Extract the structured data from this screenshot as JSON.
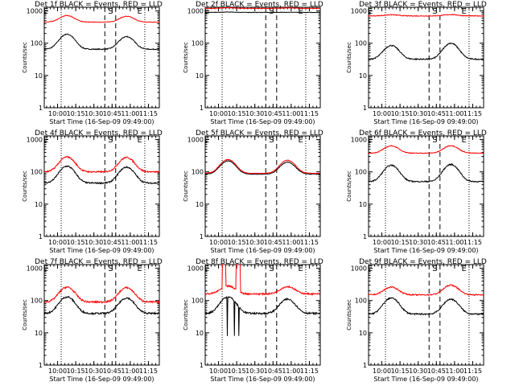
{
  "figure": {
    "colors": {
      "events": "#000000",
      "lld": "#ff0000",
      "background": "#ffffff"
    }
  },
  "chart_data": [
    {
      "type": "line",
      "title": "Det 1f BLACK = Events, RED = LLD",
      "xlabel": "Start Time (16-Sep-09 09:49:00)",
      "ylabel": "Counts/sec",
      "xticks": [
        "10:00",
        "10:15",
        "10:30",
        "10:45",
        "11:00",
        "11:15"
      ],
      "yticks": [
        "1",
        "10",
        "100",
        "1000"
      ],
      "ylim": [
        1,
        1300
      ],
      "yscale": "log",
      "markers": [
        "E",
        "S",
        "E"
      ],
      "series": [
        {
          "name": "Events",
          "color": "#000000",
          "base": 65,
          "peak1": 190,
          "peak2": 160,
          "noise": 0.03
        },
        {
          "name": "LLD",
          "color": "#ff0000",
          "base": 450,
          "peak1": 720,
          "peak2": 680,
          "noise": 0.02
        }
      ]
    },
    {
      "type": "line",
      "title": "Det 2f BLACK = Events, RED = LLD",
      "xlabel": "Start Time (16-Sep-09 09:49:00)",
      "ylabel": "Counts/sec",
      "xticks": [
        "10:00",
        "10:15",
        "10:30",
        "10:45",
        "11:00",
        "11:15"
      ],
      "yticks": [
        "1",
        "10",
        "100",
        "1000"
      ],
      "ylim": [
        1,
        1300
      ],
      "yscale": "log",
      "markers": [
        "E",
        "S",
        "E"
      ],
      "series": [
        {
          "name": "Events",
          "color": "#000000",
          "base": 900,
          "peak1": 920,
          "peak2": 910,
          "noise": 0.015
        },
        {
          "name": "LLD",
          "color": "#ff0000",
          "base": 1200,
          "peak1": 1250,
          "peak2": 1240,
          "noise": 0.015
        }
      ]
    },
    {
      "type": "line",
      "title": "Det 3f BLACK = Events, RED = LLD",
      "xlabel": "Start Time (16-Sep-09 09:49:00)",
      "ylabel": "Counts/sec",
      "xticks": [
        "10:00",
        "10:15",
        "10:30",
        "10:45",
        "11:00",
        "11:15"
      ],
      "yticks": [
        "1",
        "10",
        "100",
        "1000"
      ],
      "ylim": [
        1,
        1300
      ],
      "yscale": "log",
      "markers": [
        "E",
        "S",
        "E"
      ],
      "series": [
        {
          "name": "Events",
          "color": "#000000",
          "base": 32,
          "peak1": 85,
          "peak2": 100,
          "noise": 0.04
        },
        {
          "name": "LLD",
          "color": "#ff0000",
          "base": 700,
          "peak1": 760,
          "peak2": 770,
          "noise": 0.025
        }
      ]
    },
    {
      "type": "line",
      "title": "Det 4f BLACK = Events, RED = LLD",
      "xlabel": "Start Time (16-Sep-09 09:49:00)",
      "ylabel": "Counts/sec",
      "xticks": [
        "10:00",
        "10:15",
        "10:30",
        "10:45",
        "11:00",
        "11:15"
      ],
      "yticks": [
        "1",
        "10",
        "100",
        "1000"
      ],
      "ylim": [
        1,
        1300
      ],
      "yscale": "log",
      "markers": [
        "E",
        "S",
        "E"
      ],
      "series": [
        {
          "name": "Events",
          "color": "#000000",
          "base": 45,
          "peak1": 150,
          "peak2": 140,
          "noise": 0.05
        },
        {
          "name": "LLD",
          "color": "#ff0000",
          "base": 100,
          "peak1": 290,
          "peak2": 280,
          "noise": 0.05
        }
      ]
    },
    {
      "type": "line",
      "title": "Det 5f BLACK = Events, RED = LLD",
      "xlabel": "Start Time (16-Sep-09 09:49:00)",
      "ylabel": "Counts/sec",
      "xticks": [
        "10:00",
        "10:15",
        "10:30",
        "10:45",
        "11:00",
        "11:15"
      ],
      "yticks": [
        "1",
        "10",
        "100",
        "1000"
      ],
      "ylim": [
        1,
        1300
      ],
      "yscale": "log",
      "markers": [
        "E",
        "S",
        "E"
      ],
      "series": [
        {
          "name": "Events",
          "color": "#000000",
          "base": 85,
          "peak1": 220,
          "peak2": 200,
          "noise": 0.02
        },
        {
          "name": "LLD",
          "color": "#ff0000",
          "base": 90,
          "peak1": 240,
          "peak2": 230,
          "noise": 0.02
        }
      ]
    },
    {
      "type": "line",
      "title": "Det 6f BLACK = Events, RED = LLD",
      "xlabel": "Start Time (16-Sep-09 09:49:00)",
      "ylabel": "Counts/sec",
      "xticks": [
        "10:00",
        "10:15",
        "10:30",
        "10:45",
        "11:00",
        "11:15"
      ],
      "yticks": [
        "1",
        "10",
        "100",
        "1000"
      ],
      "ylim": [
        1,
        1300
      ],
      "yscale": "log",
      "markers": [
        "E",
        "S",
        "E"
      ],
      "series": [
        {
          "name": "Events",
          "color": "#000000",
          "base": 50,
          "peak1": 160,
          "peak2": 170,
          "noise": 0.04
        },
        {
          "name": "LLD",
          "color": "#ff0000",
          "base": 380,
          "peak1": 640,
          "peak2": 650,
          "noise": 0.025
        }
      ]
    },
    {
      "type": "line",
      "title": "Det 7f BLACK = Events, RED = LLD",
      "xlabel": "Start Time (16-Sep-09 09:49:00)",
      "ylabel": "Counts/sec",
      "xticks": [
        "10:00",
        "10:15",
        "10:30",
        "10:45",
        "11:00",
        "11:15"
      ],
      "yticks": [
        "1",
        "10",
        "100",
        "1000"
      ],
      "ylim": [
        1,
        1300
      ],
      "yscale": "log",
      "markers": [
        "E",
        "S",
        "E"
      ],
      "series": [
        {
          "name": "Events",
          "color": "#000000",
          "base": 40,
          "peak1": 130,
          "peak2": 120,
          "noise": 0.06
        },
        {
          "name": "LLD",
          "color": "#ff0000",
          "base": 90,
          "peak1": 260,
          "peak2": 250,
          "noise": 0.06
        }
      ]
    },
    {
      "type": "line",
      "title": "Det 8f BLACK = Events, RED = LLD",
      "xlabel": "Start Time (16-Sep-09 09:49:00)",
      "ylabel": "Counts/sec",
      "xticks": [
        "10:00",
        "10:15",
        "10:30",
        "10:45",
        "11:00",
        "11:15"
      ],
      "yticks": [
        "1",
        "10",
        "100",
        "1000"
      ],
      "ylim": [
        1,
        1300
      ],
      "yscale": "log",
      "markers": [
        "E",
        "S",
        "E"
      ],
      "series": [
        {
          "name": "Events",
          "color": "#000000",
          "base": 40,
          "peak1": 130,
          "peak2": 110,
          "noise": 0.06,
          "dips": [
            10.12,
            10.22,
            10.28
          ],
          "dipValue": 8
        },
        {
          "name": "LLD",
          "color": "#ff0000",
          "base": 160,
          "peak1": 280,
          "peak2": 270,
          "noise": 0.05,
          "spikes": [
            [
              10.05,
              10.1
            ],
            [
              10.24,
              10.3
            ]
          ],
          "spikeValue": 1300
        }
      ]
    },
    {
      "type": "line",
      "title": "Det 9f BLACK = Events, RED = LLD",
      "xlabel": "Start Time (16-Sep-09 09:49:00)",
      "ylabel": "Counts/sec",
      "xticks": [
        "10:00",
        "10:15",
        "10:30",
        "10:45",
        "11:00",
        "11:15"
      ],
      "yticks": [
        "1",
        "10",
        "100",
        "1000"
      ],
      "ylim": [
        1,
        1300
      ],
      "yscale": "log",
      "markers": [
        "E",
        "S",
        "E"
      ],
      "series": [
        {
          "name": "Events",
          "color": "#000000",
          "base": 38,
          "peak1": 120,
          "peak2": 110,
          "noise": 0.05
        },
        {
          "name": "LLD",
          "color": "#ff0000",
          "base": 150,
          "peak1": 260,
          "peak2": 300,
          "noise": 0.04
        }
      ]
    }
  ]
}
